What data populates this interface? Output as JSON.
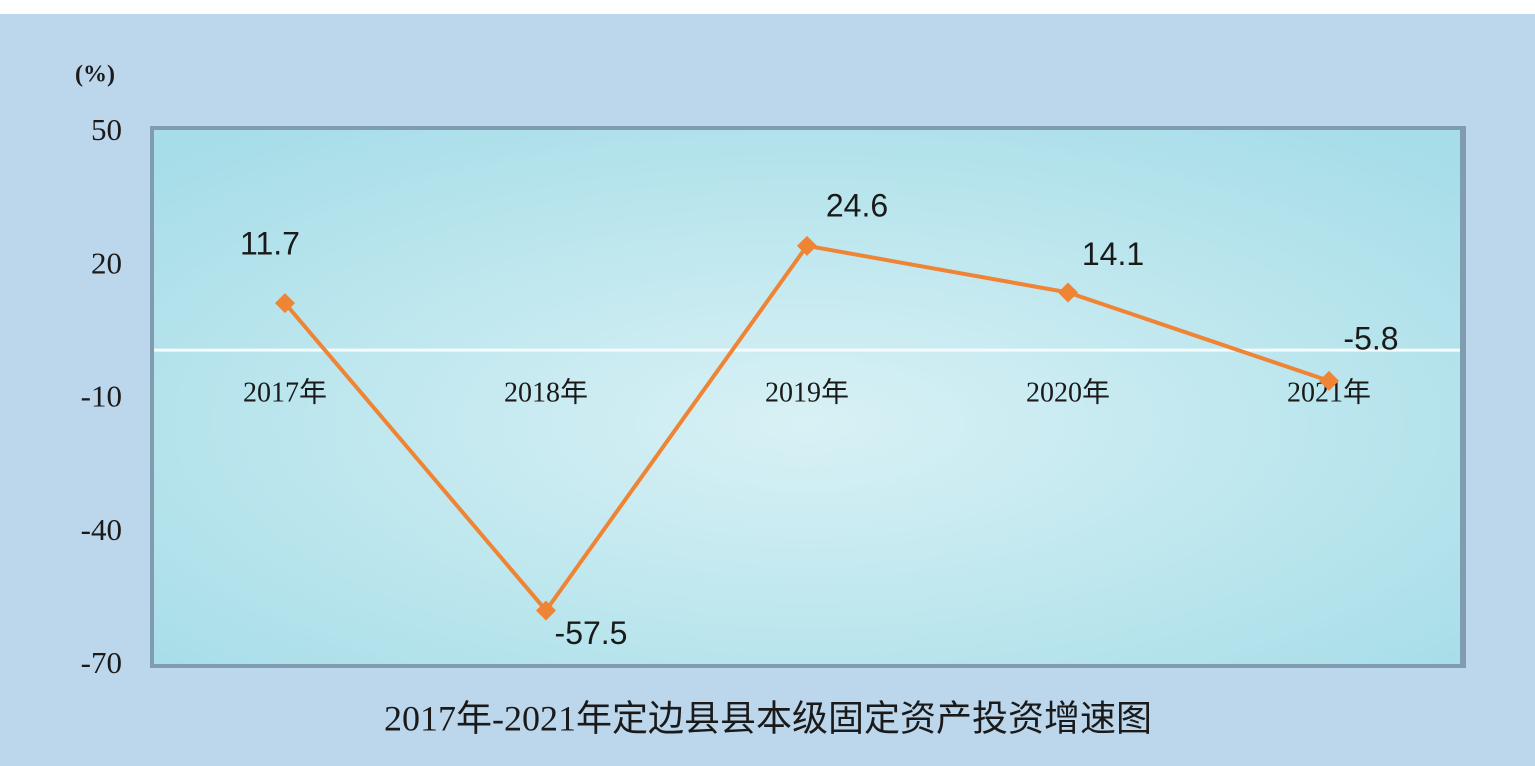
{
  "chart_data": {
    "type": "line",
    "title": "2017年-2021年定边县县本级固定资产投资增速图",
    "y_label": "(%)",
    "categories": [
      "2017年",
      "2018年",
      "2019年",
      "2020年",
      "2021年"
    ],
    "series": [
      {
        "name": "增速",
        "color": "#ee8434",
        "values": [
          11.7,
          -57.5,
          24.6,
          14.1,
          -5.8
        ]
      }
    ],
    "ylim": [
      -70,
      50
    ],
    "yticks": [
      50,
      20,
      -10,
      -40,
      -70
    ],
    "grid": false
  }
}
